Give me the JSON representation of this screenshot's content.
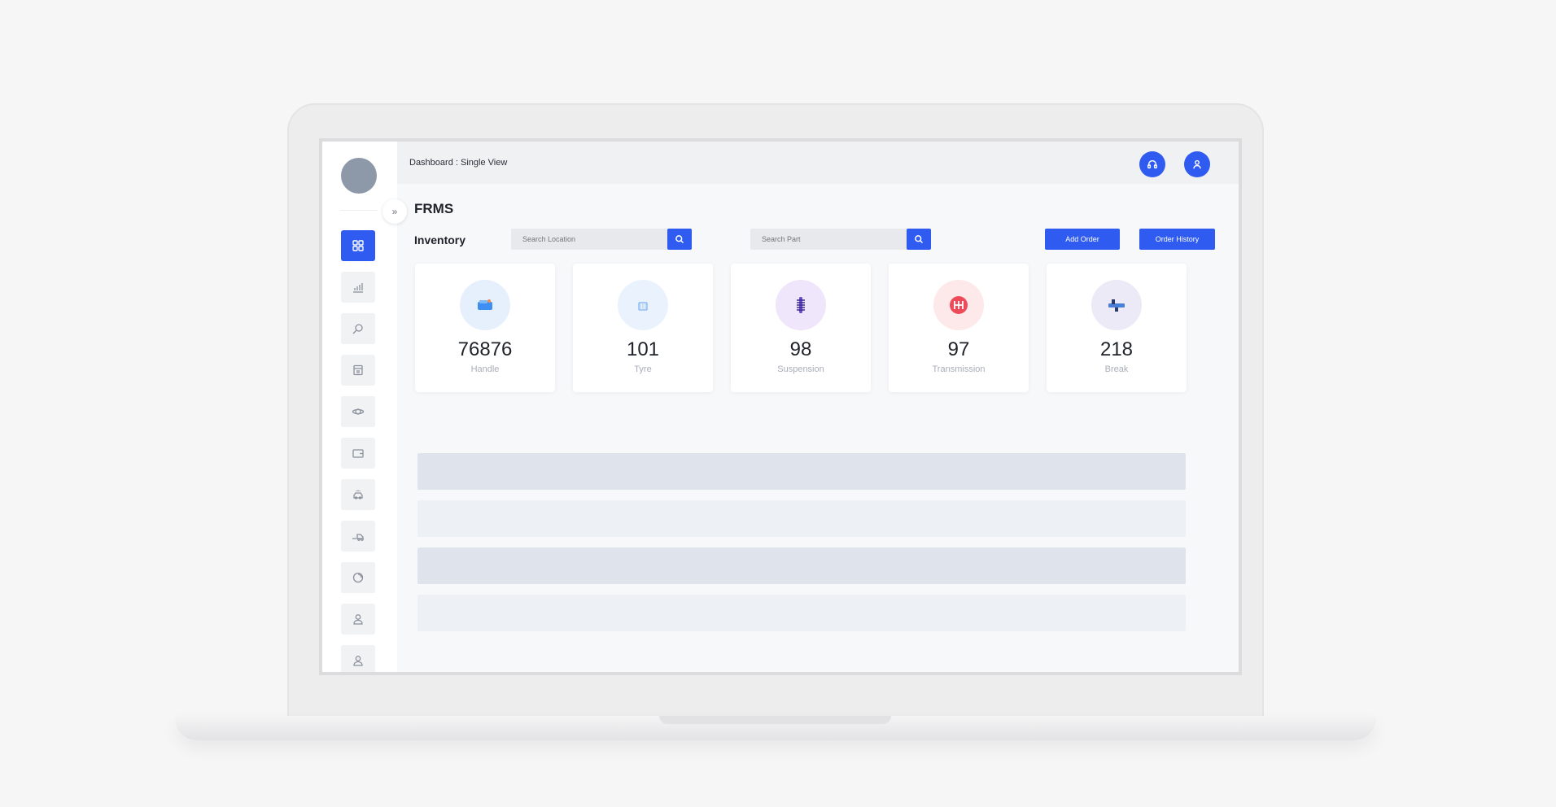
{
  "app": {
    "title": "FRMS"
  },
  "header": {
    "breadcrumb": "Dashboard : Single View"
  },
  "inventory": {
    "title": "Inventory",
    "search_location": {
      "placeholder": "Search Location"
    },
    "search_part": {
      "placeholder": "Search Part"
    },
    "add_order_label": "Add Order",
    "order_history_label": "Order History"
  },
  "stats": [
    {
      "value": "76876",
      "label": "Handle",
      "icon": "handle-icon",
      "bg": "#e6f0fd",
      "fg": "#3f8ef2"
    },
    {
      "value": "101",
      "label": "Tyre",
      "icon": "tyre-icon",
      "bg": "#eaf3fd",
      "fg": "#7fb2f0"
    },
    {
      "value": "98",
      "label": "Suspension",
      "icon": "suspension-icon",
      "bg": "#efe6fb",
      "fg": "#6c4fc9"
    },
    {
      "value": "97",
      "label": "Transmission",
      "icon": "transmission-icon",
      "bg": "#fde8ea",
      "fg": "#ee4b5a"
    },
    {
      "value": "218",
      "label": "Break",
      "icon": "brake-icon",
      "bg": "#eceaf7",
      "fg": "#4a7fd8"
    }
  ],
  "sidebar": {
    "items": [
      {
        "icon": "dashboard-grid-icon",
        "active": true
      },
      {
        "icon": "bar-chart-icon"
      },
      {
        "icon": "search-parts-icon"
      },
      {
        "icon": "calendar-icon"
      },
      {
        "icon": "orbit-icon"
      },
      {
        "icon": "wallet-icon"
      },
      {
        "icon": "car-wash-icon"
      },
      {
        "icon": "truck-icon"
      },
      {
        "icon": "support-icon"
      },
      {
        "icon": "user-icon"
      },
      {
        "icon": "user-profile-icon"
      }
    ]
  },
  "colors": {
    "accent": "#2f5bf0"
  }
}
